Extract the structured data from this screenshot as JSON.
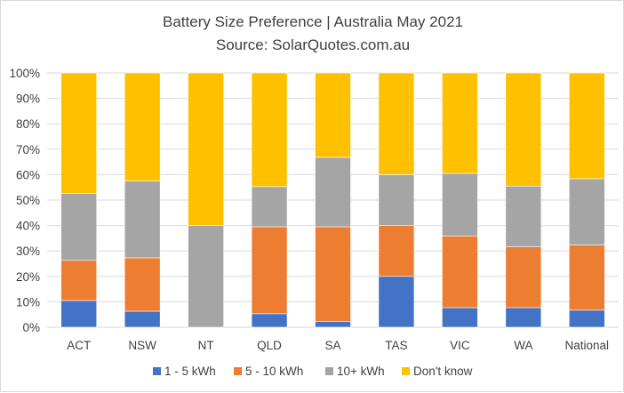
{
  "chart_data": {
    "type": "bar",
    "stacked": true,
    "title": "Battery Size Preference  | Australia May 2021",
    "subtitle": "Source: SolarQuotes.com.au",
    "categories": [
      "ACT",
      "NSW",
      "NT",
      "QLD",
      "SA",
      "TAS",
      "VIC",
      "WA",
      "National"
    ],
    "y_ticks": [
      "0%",
      "10%",
      "20%",
      "30%",
      "40%",
      "50%",
      "60%",
      "70%",
      "80%",
      "90%",
      "100%"
    ],
    "ylim": [
      0,
      100
    ],
    "grid": true,
    "legend_position": "bottom",
    "series": [
      {
        "name": "1 - 5 kWh",
        "color": "#4472C4",
        "values": [
          10.5,
          6.3,
          0,
          5.3,
          2.2,
          20,
          7.7,
          7.7,
          6.7
        ]
      },
      {
        "name": "5 - 10 kWh",
        "color": "#ED7D31",
        "values": [
          15.8,
          21.0,
          0,
          34.2,
          37.3,
          20,
          28.2,
          23.9,
          25.6
        ]
      },
      {
        "name": "10+ kWh",
        "color": "#A5A5A5",
        "values": [
          26.3,
          30.2,
          40,
          15.8,
          27.3,
          20,
          24.6,
          23.9,
          26.1
        ]
      },
      {
        "name": "Don't know",
        "color": "#FFC000",
        "values": [
          47.4,
          42.5,
          60,
          44.7,
          33.2,
          40,
          39.5,
          44.5,
          41.6
        ]
      }
    ]
  }
}
